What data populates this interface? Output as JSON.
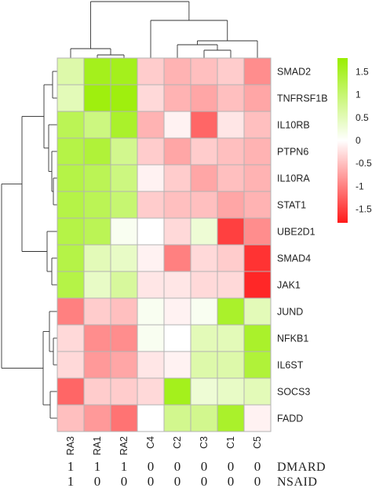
{
  "chart_data": {
    "type": "heatmap",
    "columns": [
      "RA3",
      "RA1",
      "RA2",
      "C4",
      "C2",
      "C3",
      "C1",
      "C5"
    ],
    "rows": [
      "SMAD2",
      "TNFRSF1B",
      "IL10RB",
      "PTPN6",
      "IL10RA",
      "STAT1",
      "UBE2D1",
      "SMAD4",
      "JAK1",
      "JUND",
      "NFKB1",
      "IL6ST",
      "SOCS3",
      "FADD"
    ],
    "values": [
      [
        0.6,
        1.6,
        1.6,
        -0.4,
        -0.6,
        -0.5,
        -0.4,
        -0.9
      ],
      [
        0.5,
        1.7,
        1.7,
        -0.3,
        -0.6,
        -0.7,
        -0.5,
        -0.7
      ],
      [
        1.2,
        0.9,
        1.5,
        -0.6,
        -0.1,
        -1.2,
        -0.2,
        -0.5
      ],
      [
        1.3,
        1.4,
        0.8,
        -0.4,
        -0.7,
        -0.4,
        -0.5,
        -0.6
      ],
      [
        1.3,
        1.2,
        0.9,
        -0.1,
        -0.4,
        -0.7,
        -0.5,
        -0.6
      ],
      [
        1.3,
        1.2,
        1.0,
        -0.4,
        -0.5,
        -0.5,
        -0.7,
        -0.6
      ],
      [
        1.3,
        1.2,
        0.1,
        0.0,
        -0.3,
        0.3,
        -1.5,
        -0.9
      ],
      [
        1.3,
        0.5,
        0.4,
        -0.1,
        -1.0,
        -0.3,
        -0.4,
        -1.6
      ],
      [
        1.3,
        0.4,
        0.7,
        -0.2,
        -0.2,
        -0.3,
        -0.3,
        -1.7
      ],
      [
        -1.0,
        -0.4,
        -0.5,
        0.1,
        -0.1,
        0.1,
        1.5,
        0.5
      ],
      [
        -0.3,
        -0.9,
        -0.9,
        0.1,
        0.0,
        0.5,
        0.5,
        1.5
      ],
      [
        -0.3,
        -0.8,
        -0.7,
        -0.2,
        -0.1,
        0.6,
        0.6,
        1.4
      ],
      [
        -1.2,
        -0.4,
        -0.4,
        -0.3,
        1.6,
        0.3,
        0.4,
        0.5
      ],
      [
        -0.5,
        -0.8,
        -1.1,
        0.0,
        0.8,
        0.8,
        1.5,
        -0.1
      ]
    ],
    "color_scale": {
      "min": -1.8,
      "max": 1.8,
      "low_color": "#ff1a1a",
      "mid_color": "#ffffff",
      "high_color": "#99ee00",
      "ticks": [
        1.5,
        1,
        0.5,
        0,
        -0.5,
        -1,
        -1.5
      ]
    },
    "annotations": [
      {
        "label": "DMARD",
        "values": [
          "1",
          "1",
          "1",
          "0",
          "0",
          "0",
          "0",
          "0"
        ]
      },
      {
        "label": "NSAID",
        "values": [
          "1",
          "0",
          "0",
          "0",
          "0",
          "0",
          "0",
          "0"
        ]
      }
    ],
    "row_dendrogram": true,
    "column_dendrogram": true,
    "grid_lines": "#b3b3b3"
  }
}
